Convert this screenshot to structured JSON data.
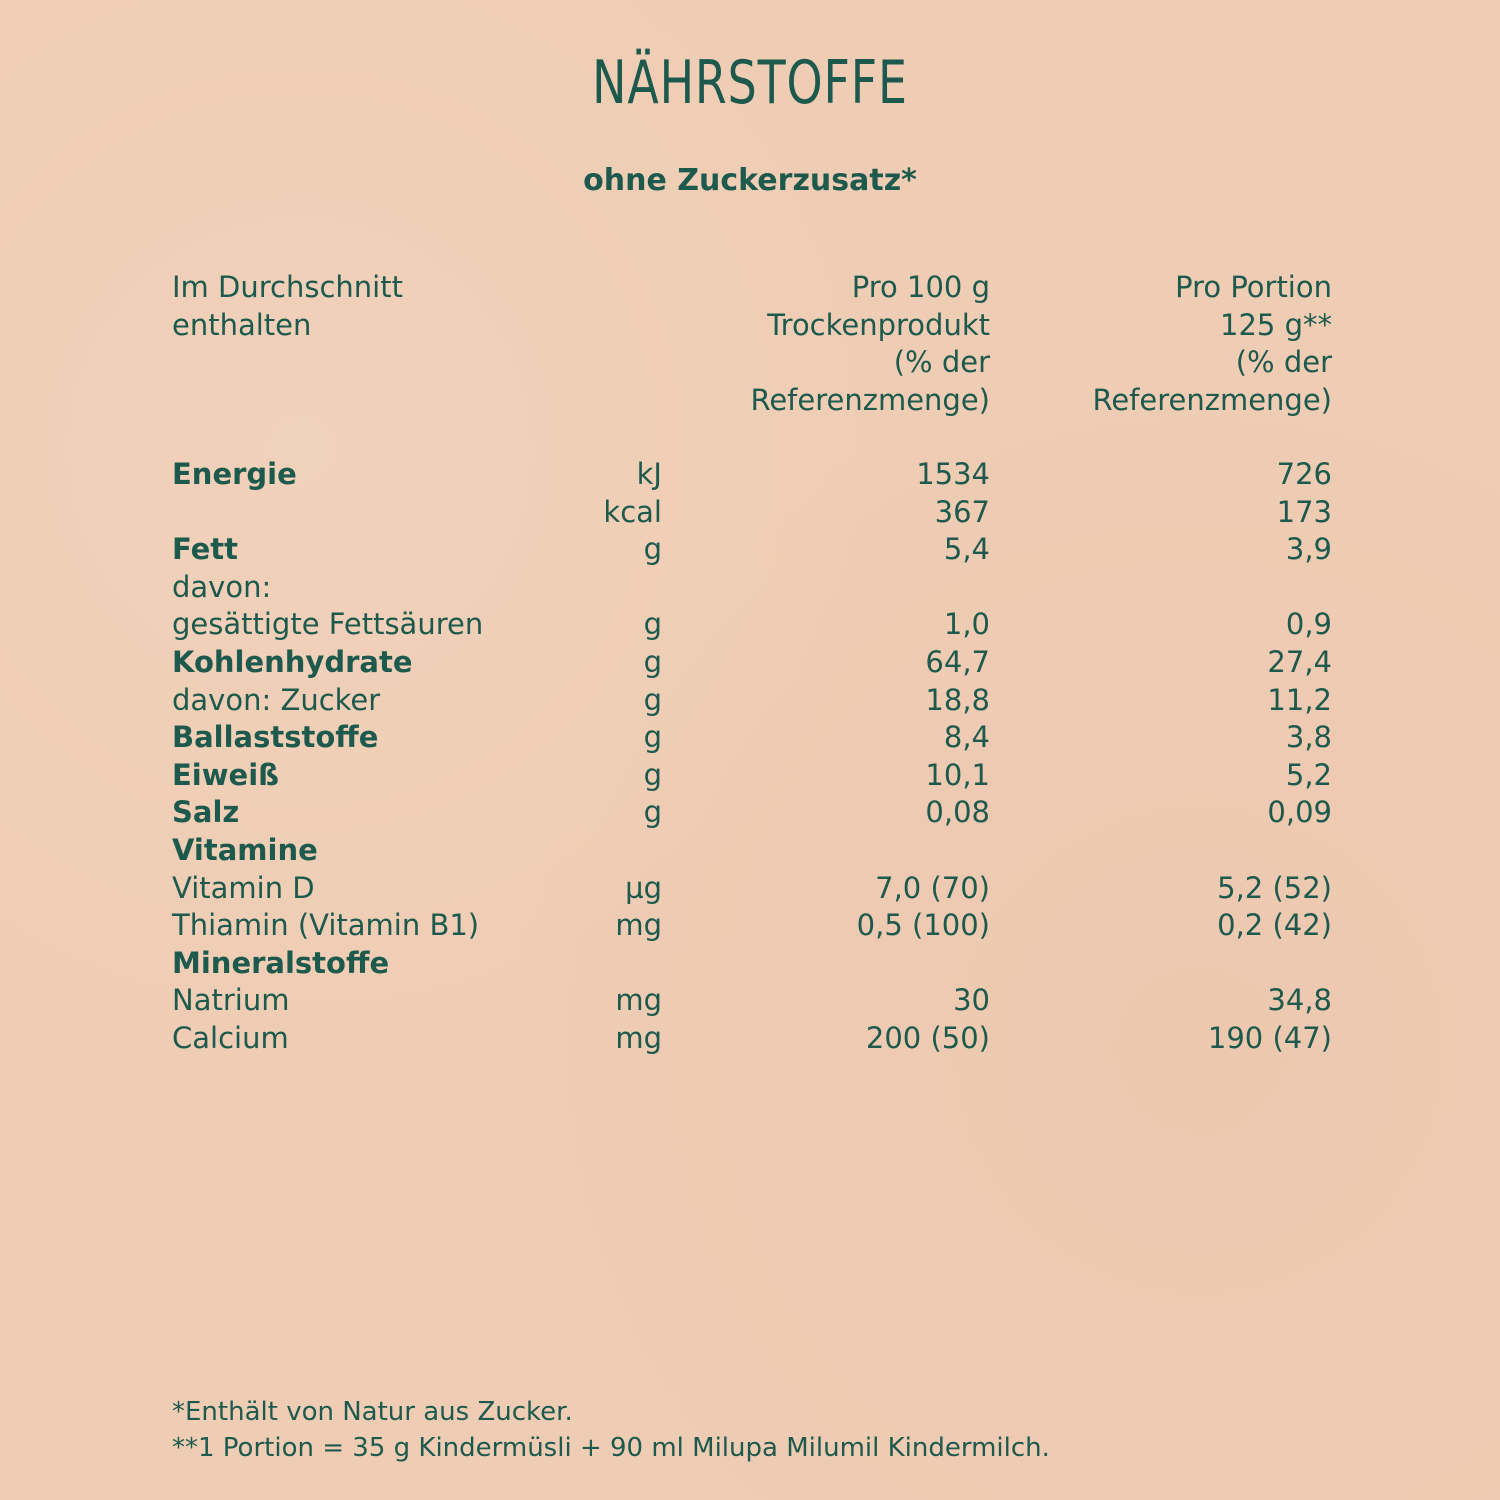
{
  "title": "NÄHRSTOFFE",
  "subtitle": "ohne Zuckerzusatz*",
  "header": {
    "label": [
      "Im Durchschnitt",
      "enthalten"
    ],
    "col1": [
      "Pro 100 g",
      "Trockenprodukt",
      "(% der",
      "Referenzmenge)"
    ],
    "col2": [
      "Pro Portion",
      "125 g**",
      "(% der",
      "Referenzmenge)"
    ]
  },
  "rows": [
    {
      "label": "Energie",
      "bold": true,
      "unit": "kJ",
      "per100": "1534",
      "perPortion": "726"
    },
    {
      "label": "",
      "bold": false,
      "unit": "kcal",
      "per100": "367",
      "perPortion": "173"
    },
    {
      "label": "Fett",
      "bold": true,
      "unit": "g",
      "per100": "5,4",
      "perPortion": "3,9"
    },
    {
      "label": "davon:",
      "bold": false,
      "unit": "",
      "per100": "",
      "perPortion": ""
    },
    {
      "label": "gesättigte Fettsäuren",
      "bold": false,
      "unit": "g",
      "per100": "1,0",
      "perPortion": "0,9"
    },
    {
      "label": "Kohlenhydrate",
      "bold": true,
      "unit": "g",
      "per100": "64,7",
      "perPortion": "27,4"
    },
    {
      "label": "davon: Zucker",
      "bold": false,
      "unit": "g",
      "per100": "18,8",
      "perPortion": "11,2"
    },
    {
      "label": "Ballaststoffe",
      "bold": true,
      "unit": "g",
      "per100": "8,4",
      "perPortion": "3,8"
    },
    {
      "label": "Eiweiß",
      "bold": true,
      "unit": "g",
      "per100": "10,1",
      "perPortion": "5,2"
    },
    {
      "label": "Salz",
      "bold": true,
      "unit": "g",
      "per100": "0,08",
      "perPortion": "0,09"
    },
    {
      "label": "Vitamine",
      "bold": true,
      "unit": "",
      "per100": "",
      "perPortion": ""
    },
    {
      "label": "Vitamin D",
      "bold": false,
      "unit": "µg",
      "per100": "7,0 (70)",
      "perPortion": "5,2 (52)"
    },
    {
      "label": "Thiamin (Vitamin B1)",
      "bold": false,
      "unit": "mg",
      "per100": "0,5 (100)",
      "perPortion": "0,2 (42)"
    },
    {
      "label": "Mineralstoffe",
      "bold": true,
      "unit": "",
      "per100": "",
      "perPortion": ""
    },
    {
      "label": "Natrium",
      "bold": false,
      "unit": "mg",
      "per100": "30",
      "perPortion": "34,8"
    },
    {
      "label": "Calcium",
      "bold": false,
      "unit": "mg",
      "per100": "200 (50)",
      "perPortion": "190 (47)"
    }
  ],
  "footnotes": [
    "*Enthält von Natur aus Zucker.",
    "**1 Portion = 35 g Kindermüsli + 90 ml Milupa Milumil Kindermilch."
  ],
  "colors": {
    "text": "#1d5a4d",
    "background": "#efcdb4"
  }
}
